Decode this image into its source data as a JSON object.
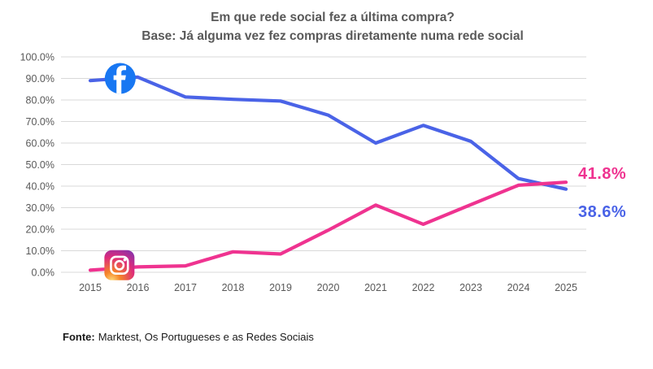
{
  "chart_data": {
    "type": "line",
    "title": "Em que rede social fez a última compra?",
    "subtitle": "Base: Já alguma vez fez compras diretamente numa rede social",
    "x": [
      2015,
      2016,
      2017,
      2018,
      2019,
      2020,
      2021,
      2022,
      2023,
      2024,
      2025
    ],
    "xtick_labels": [
      "2015",
      "2016",
      "2017",
      "2018",
      "2019",
      "2020",
      "2021",
      "2022",
      "2023",
      "2024",
      "2025"
    ],
    "ytick_labels": [
      "0.0%",
      "10.0%",
      "20.0%",
      "30.0%",
      "40.0%",
      "50.0%",
      "60.0%",
      "70.0%",
      "80.0%",
      "90.0%",
      "100.0%"
    ],
    "ylim": [
      0,
      100
    ],
    "ytick_step": 10,
    "grid": "horizontal",
    "legend": "brand-icons-at-line-start",
    "series": [
      {
        "name": "Facebook",
        "color": "#4A63E7",
        "icon": "facebook-icon",
        "icon_color": "#1877F2",
        "values": [
          89.0,
          90.6,
          81.4,
          80.3,
          79.5,
          73.0,
          60.0,
          68.2,
          60.8,
          43.5,
          38.6
        ],
        "end_label": "38.6%"
      },
      {
        "name": "Instagram",
        "color": "#EF3390",
        "icon": "instagram-icon",
        "icon_gradient": [
          "#FED776",
          "#F58529",
          "#DD2A7B",
          "#8134AF",
          "#515BD4"
        ],
        "values": [
          1.0,
          2.5,
          3.0,
          9.5,
          8.5,
          19.5,
          31.2,
          22.3,
          31.4,
          40.4,
          41.8
        ],
        "end_label": "41.8%"
      }
    ]
  },
  "footer": {
    "source_label": "Fonte:",
    "source_text": "Marktest, Os Portugueses e as Redes Sociais"
  },
  "colors": {
    "title_text": "#595959",
    "axis_text": "#595959",
    "gridline": "#D9D9D9",
    "background": "#FFFFFF",
    "facebook_line": "#4A63E7",
    "instagram_line": "#EF3390",
    "facebook_brand": "#1877F2"
  }
}
